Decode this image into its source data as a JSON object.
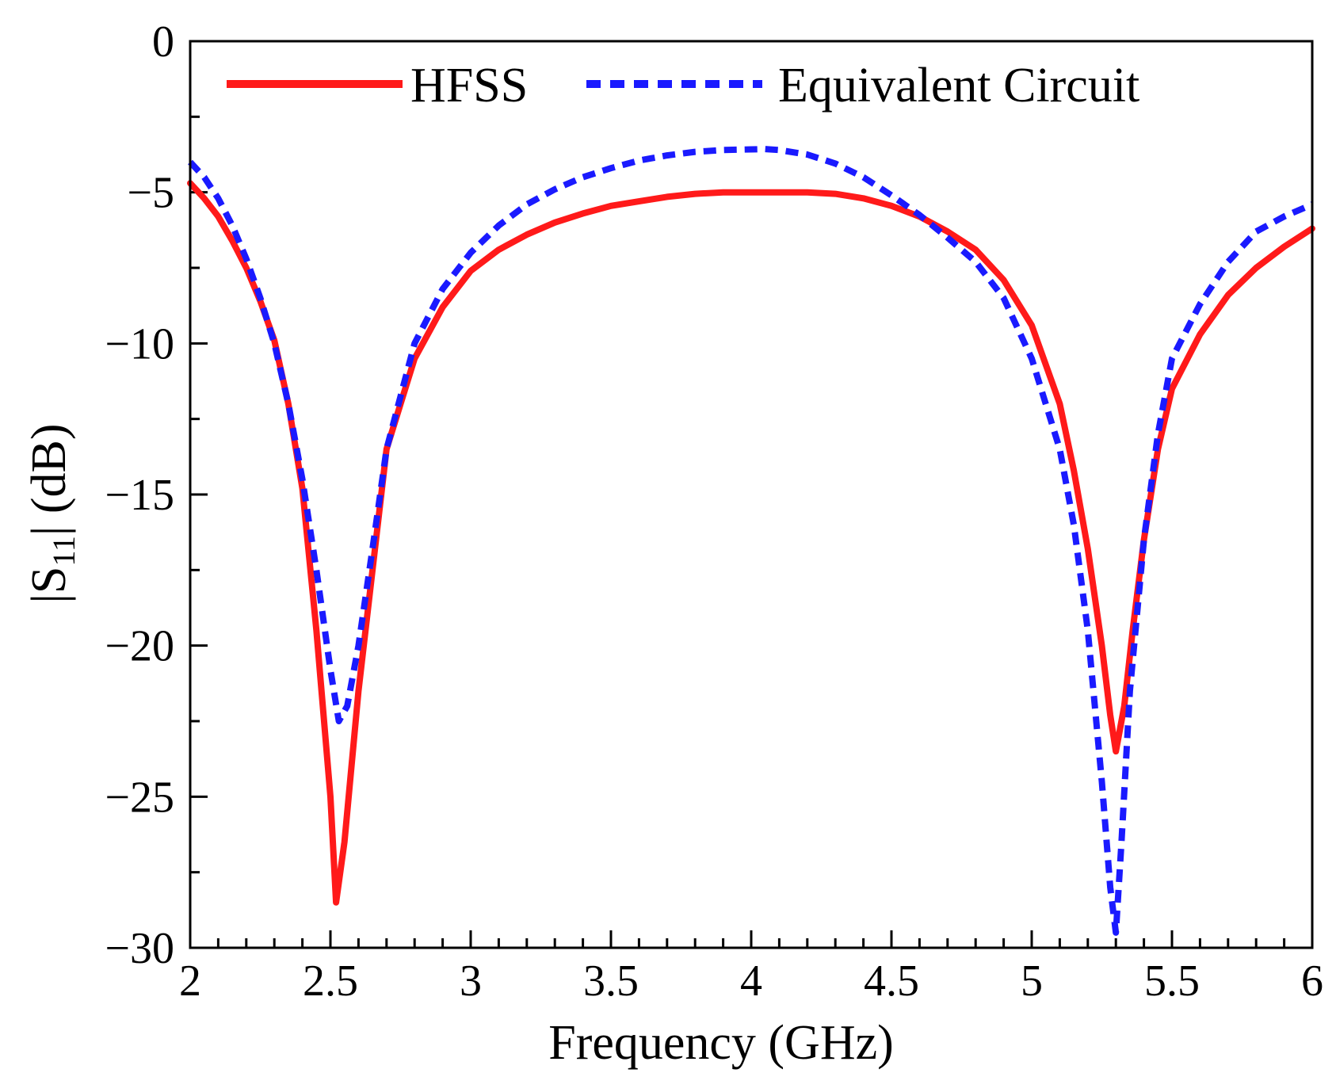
{
  "chart_data": {
    "type": "line",
    "xlabel": "Frequency (GHz)",
    "ylabel": {
      "prefix": "|S",
      "sub": "11",
      "suffix": "| (dB)"
    },
    "xlim": [
      2,
      6
    ],
    "ylim": [
      -30,
      0
    ],
    "x_ticks": [
      2,
      2.5,
      3,
      3.5,
      4,
      4.5,
      5,
      5.5,
      6
    ],
    "x_tick_labels": [
      "2",
      "2.5",
      "3",
      "3.5",
      "4",
      "4.5",
      "5",
      "5.5",
      "6"
    ],
    "y_ticks": [
      0,
      -5,
      -10,
      -15,
      -20,
      -25,
      -30
    ],
    "y_tick_labels": [
      "0",
      "−5",
      "−10",
      "−15",
      "−20",
      "−25",
      "−30"
    ],
    "x_minor_step": 0.1,
    "y_minor_step": 2.5,
    "legend_position": "top",
    "series": [
      {
        "name": "HFSS",
        "color": "#ff1a1a",
        "style": "solid",
        "x": [
          2.0,
          2.05,
          2.1,
          2.15,
          2.2,
          2.25,
          2.3,
          2.35,
          2.4,
          2.45,
          2.5,
          2.52,
          2.55,
          2.6,
          2.65,
          2.7,
          2.8,
          2.9,
          3.0,
          3.1,
          3.2,
          3.3,
          3.4,
          3.5,
          3.6,
          3.7,
          3.8,
          3.9,
          4.0,
          4.1,
          4.2,
          4.3,
          4.4,
          4.5,
          4.6,
          4.7,
          4.8,
          4.9,
          5.0,
          5.1,
          5.15,
          5.2,
          5.25,
          5.28,
          5.3,
          5.33,
          5.36,
          5.4,
          5.45,
          5.5,
          5.6,
          5.7,
          5.8,
          5.9,
          6.0
        ],
        "y": [
          -4.7,
          -5.2,
          -5.8,
          -6.6,
          -7.5,
          -8.6,
          -9.9,
          -12.0,
          -14.8,
          -19.5,
          -25.0,
          -28.5,
          -26.5,
          -21.5,
          -17.5,
          -13.5,
          -10.5,
          -8.8,
          -7.6,
          -6.9,
          -6.4,
          -6.0,
          -5.7,
          -5.45,
          -5.3,
          -5.15,
          -5.05,
          -5.0,
          -5.0,
          -5.0,
          -5.0,
          -5.05,
          -5.2,
          -5.45,
          -5.8,
          -6.3,
          -6.9,
          -7.9,
          -9.4,
          -12.0,
          -14.2,
          -16.8,
          -20.0,
          -22.3,
          -23.5,
          -22.0,
          -19.5,
          -16.5,
          -13.5,
          -11.5,
          -9.7,
          -8.4,
          -7.5,
          -6.8,
          -6.2
        ]
      },
      {
        "name": "Equivalent Circuit",
        "color": "#1a1aff",
        "style": "dashed",
        "x": [
          2.0,
          2.05,
          2.1,
          2.15,
          2.2,
          2.25,
          2.3,
          2.35,
          2.4,
          2.45,
          2.5,
          2.53,
          2.56,
          2.6,
          2.65,
          2.7,
          2.8,
          2.9,
          3.0,
          3.1,
          3.2,
          3.3,
          3.4,
          3.5,
          3.6,
          3.7,
          3.8,
          3.9,
          4.0,
          4.05,
          4.1,
          4.2,
          4.3,
          4.4,
          4.5,
          4.6,
          4.7,
          4.8,
          4.9,
          5.0,
          5.1,
          5.15,
          5.2,
          5.25,
          5.28,
          5.3,
          5.32,
          5.35,
          5.4,
          5.45,
          5.5,
          5.6,
          5.7,
          5.8,
          5.9,
          6.0
        ],
        "y": [
          -4.0,
          -4.5,
          -5.2,
          -6.1,
          -7.2,
          -8.5,
          -10.0,
          -12.0,
          -14.5,
          -17.5,
          -20.8,
          -22.5,
          -22.0,
          -20.0,
          -16.8,
          -13.5,
          -10.0,
          -8.2,
          -7.0,
          -6.1,
          -5.4,
          -4.9,
          -4.5,
          -4.2,
          -3.95,
          -3.78,
          -3.66,
          -3.6,
          -3.58,
          -3.57,
          -3.6,
          -3.75,
          -4.05,
          -4.5,
          -5.1,
          -5.75,
          -6.5,
          -7.3,
          -8.5,
          -10.5,
          -13.5,
          -16.0,
          -19.5,
          -24.5,
          -28.0,
          -29.5,
          -26.5,
          -21.5,
          -16.5,
          -13.0,
          -10.5,
          -8.7,
          -7.3,
          -6.3,
          -5.8,
          -5.4
        ]
      }
    ]
  }
}
